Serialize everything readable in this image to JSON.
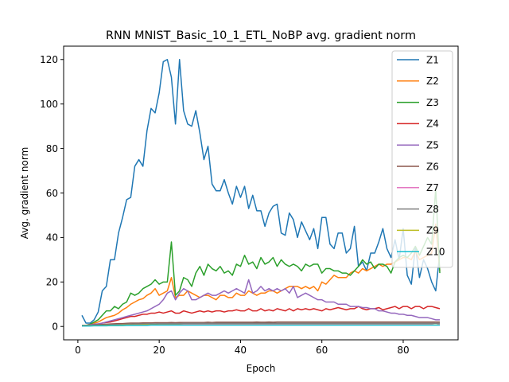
{
  "chart_data": {
    "type": "line",
    "title": "RNN MNIST_Basic_10_1_ETL_NoBP avg. gradient norm",
    "xlabel": "Epoch",
    "ylabel": "Avg. gradient norm",
    "xlim": [
      -3.5,
      93.5
    ],
    "ylim": [
      -6.0,
      126.0
    ],
    "xticks": [
      0,
      20,
      40,
      60,
      80
    ],
    "yticks": [
      0,
      20,
      40,
      60,
      80,
      100,
      120
    ],
    "grid": false,
    "legend_position": "top-right",
    "x": [
      1,
      2,
      3,
      4,
      5,
      6,
      7,
      8,
      9,
      10,
      11,
      12,
      13,
      14,
      15,
      16,
      17,
      18,
      19,
      20,
      21,
      22,
      23,
      24,
      25,
      26,
      27,
      28,
      29,
      30,
      31,
      32,
      33,
      34,
      35,
      36,
      37,
      38,
      39,
      40,
      41,
      42,
      43,
      44,
      45,
      46,
      47,
      48,
      49,
      50,
      51,
      52,
      53,
      54,
      55,
      56,
      57,
      58,
      59,
      60,
      61,
      62,
      63,
      64,
      65,
      66,
      67,
      68,
      69,
      70,
      71,
      72,
      73,
      74,
      75,
      76,
      77,
      78,
      79,
      80,
      81,
      82,
      83,
      84,
      85,
      86,
      87,
      88,
      89
    ],
    "series": [
      {
        "name": "Z1",
        "color": "#1f77b4",
        "values": [
          5,
          1.5,
          1.5,
          3,
          6.5,
          16,
          18,
          30,
          30,
          42,
          49,
          57,
          58,
          72,
          75,
          72,
          88,
          98,
          96,
          105,
          119,
          120,
          112,
          91,
          120,
          97,
          91,
          90,
          97,
          87,
          75,
          81,
          64,
          61,
          61,
          66,
          60,
          55,
          63,
          58,
          63,
          53,
          59,
          52,
          52,
          45,
          51,
          54,
          55,
          42,
          41,
          51,
          48,
          40,
          47,
          43,
          39,
          44,
          35,
          49,
          49,
          37,
          35,
          42,
          42,
          33,
          35,
          45,
          27,
          29,
          25,
          33,
          33,
          38,
          44,
          35,
          31,
          39,
          30,
          44,
          23,
          19,
          36,
          22,
          30,
          26,
          20,
          16,
          33
        ]
      },
      {
        "name": "Z2",
        "color": "#ff7f0e",
        "values": [
          0.5,
          0.5,
          1,
          1.5,
          2,
          3,
          4,
          4.5,
          5,
          6,
          7.5,
          8.5,
          10,
          11,
          12,
          12.5,
          14,
          15,
          17,
          14,
          15,
          16,
          22,
          13,
          14,
          14,
          16,
          15,
          14,
          13,
          14,
          14,
          13,
          12,
          14,
          14,
          13,
          13,
          15,
          14,
          14,
          16,
          15,
          14,
          15,
          15,
          16,
          16,
          15,
          16,
          17,
          18,
          18,
          18,
          17,
          18,
          17,
          18,
          16,
          20,
          19,
          21,
          23,
          22,
          22,
          22,
          24,
          25,
          24,
          26,
          25,
          26,
          27,
          28,
          27,
          28,
          28,
          29,
          30,
          31,
          31,
          30,
          34,
          30,
          31,
          32,
          33,
          46,
          25
        ]
      },
      {
        "name": "Z3",
        "color": "#2ca02c",
        "values": [
          0.3,
          0.5,
          1,
          2,
          3,
          5,
          7,
          7,
          9,
          8,
          10,
          11,
          15,
          14,
          15,
          17,
          18,
          19,
          21,
          19,
          20,
          20,
          38,
          14,
          16,
          22,
          21,
          18,
          24,
          27,
          23,
          28,
          26,
          25,
          27,
          24,
          25,
          23,
          28,
          27,
          32,
          28,
          29,
          26,
          31,
          28,
          29,
          31,
          27,
          30,
          28,
          27,
          28,
          27,
          25,
          28,
          27,
          28,
          28,
          24,
          26,
          26,
          25,
          25,
          24,
          24,
          23,
          25,
          27,
          30,
          28,
          29,
          26,
          28,
          28,
          27,
          24,
          29,
          31,
          32,
          31,
          33,
          36,
          32,
          36,
          40,
          37,
          62,
          24
        ]
      },
      {
        "name": "Z4",
        "color": "#d62728",
        "values": [
          0.3,
          0.3,
          0.5,
          0.8,
          1,
          1.5,
          1.8,
          2,
          2.5,
          3,
          3.5,
          4,
          4.5,
          4.5,
          5,
          5.5,
          5.5,
          6,
          6,
          6.5,
          6,
          6.5,
          7,
          6,
          6,
          7,
          6.5,
          6,
          6.5,
          7,
          6.5,
          7,
          6.5,
          7,
          7,
          6.5,
          7,
          7,
          7.5,
          7,
          7,
          8,
          7,
          7,
          8,
          7,
          7.5,
          7,
          8,
          7.5,
          7,
          8,
          7,
          8,
          7.5,
          8,
          7.5,
          8,
          7.5,
          7,
          8,
          7.5,
          8,
          8.5,
          8,
          7.5,
          8,
          8,
          9,
          8,
          7.5,
          8,
          8,
          8.5,
          7.5,
          8,
          8.5,
          9,
          8,
          9,
          9,
          8,
          9,
          9,
          8,
          9,
          9,
          8.5,
          8
        ]
      },
      {
        "name": "Z5",
        "color": "#9467bd",
        "values": [
          0.5,
          0.5,
          0.8,
          1,
          1.2,
          1.5,
          2,
          2.5,
          3,
          3.5,
          4,
          4.5,
          5,
          5.5,
          6,
          6.5,
          7,
          8,
          9,
          10,
          12,
          15,
          16,
          12,
          15,
          17,
          16,
          12,
          12,
          13,
          14,
          15,
          14,
          14,
          15,
          16,
          15,
          16,
          17,
          16,
          15,
          21,
          15,
          16,
          18,
          16,
          17,
          16,
          17,
          16,
          17,
          15,
          18,
          13,
          14,
          15,
          14,
          13,
          12,
          12,
          11,
          11,
          11,
          10,
          10,
          10,
          9,
          9,
          9,
          8.5,
          8.5,
          8,
          8,
          7,
          7,
          6.5,
          6,
          6,
          5.5,
          5.5,
          5,
          5,
          4.5,
          4,
          4,
          4,
          3.5,
          3,
          3
        ]
      },
      {
        "name": "Z6",
        "color": "#8c564b",
        "values": [
          0.5,
          0.5,
          0.6,
          0.7,
          0.8,
          0.9,
          1,
          1.1,
          1.2,
          1.3,
          1.3,
          1.4,
          1.5,
          1.5,
          1.5,
          1.6,
          1.6,
          1.6,
          1.7,
          1.7,
          1.7,
          1.7,
          1.8,
          1.7,
          1.8,
          1.8,
          1.8,
          1.8,
          1.8,
          1.8,
          1.8,
          1.9,
          1.8,
          1.9,
          1.9,
          1.9,
          1.9,
          1.9,
          1.9,
          1.9,
          1.9,
          1.9,
          1.9,
          2,
          1.9,
          1.9,
          2,
          1.9,
          2,
          2,
          2,
          2,
          2,
          2,
          2,
          2,
          2,
          2,
          2,
          2,
          2,
          2,
          2,
          2,
          2,
          2,
          2,
          2,
          2,
          2,
          2,
          2,
          2,
          2,
          2,
          2,
          2,
          2,
          2,
          2,
          2,
          2,
          2,
          2,
          2,
          2,
          2,
          2,
          2
        ]
      },
      {
        "name": "Z7",
        "color": "#e377c2",
        "values": [
          0.3,
          0.3,
          0.4,
          0.4,
          0.5,
          0.5,
          0.6,
          0.6,
          0.7,
          0.7,
          0.8,
          0.8,
          0.9,
          0.9,
          0.9,
          1,
          1,
          1,
          1,
          1,
          1,
          1,
          1.1,
          1,
          1.1,
          1.1,
          1.1,
          1.1,
          1.1,
          1.1,
          1.1,
          1.1,
          1.1,
          1.1,
          1.1,
          1.1,
          1.1,
          1.1,
          1.1,
          1.1,
          1.1,
          1.1,
          1.1,
          1.1,
          1.1,
          1.1,
          1.1,
          1.1,
          1.1,
          1.1,
          1.1,
          1.1,
          1.1,
          1.1,
          1.1,
          1.1,
          1.1,
          1.1,
          1.1,
          1.1,
          1.1,
          1.1,
          1.1,
          1.1,
          1.1,
          1.1,
          1.1,
          1.1,
          1.1,
          1.1,
          1.1,
          1.1,
          1.1,
          1.1,
          1.1,
          1.1,
          1.1,
          1.1,
          1.1,
          1.1,
          1.1,
          1.1,
          1.1,
          1.1,
          1.1,
          1.1,
          1.2,
          1.5,
          1
        ]
      },
      {
        "name": "Z8",
        "color": "#7f7f7f",
        "values": [
          0.4,
          0.4,
          0.5,
          0.5,
          0.6,
          0.6,
          0.7,
          0.8,
          0.8,
          0.9,
          0.9,
          1,
          1,
          1.1,
          1.1,
          1.1,
          1.2,
          1.2,
          1.2,
          1.3,
          1.3,
          1.3,
          1.3,
          1.3,
          1.3,
          1.4,
          1.4,
          1.4,
          1.4,
          1.4,
          1.4,
          1.4,
          1.4,
          1.4,
          1.4,
          1.4,
          1.4,
          1.4,
          1.4,
          1.4,
          1.4,
          1.4,
          1.4,
          1.4,
          1.4,
          1.4,
          1.4,
          1.4,
          1.4,
          1.4,
          1.4,
          1.4,
          1.4,
          1.4,
          1.4,
          1.4,
          1.4,
          1.4,
          1.4,
          1.4,
          1.4,
          1.4,
          1.4,
          1.4,
          1.4,
          1.4,
          1.4,
          1.4,
          1.4,
          1.4,
          1.4,
          1.4,
          1.4,
          1.4,
          1.4,
          1.4,
          1.4,
          1.4,
          1.4,
          1.4,
          1.4,
          1.4,
          1.4,
          1.4,
          1.4,
          1.4,
          1.4,
          1.4,
          1.4
        ]
      },
      {
        "name": "Z9",
        "color": "#bcbd22",
        "values": [
          0.3,
          0.3,
          0.3,
          0.4,
          0.4,
          0.4,
          0.5,
          0.5,
          0.5,
          0.5,
          0.6,
          0.6,
          0.6,
          0.6,
          0.6,
          0.7,
          0.7,
          0.7,
          0.7,
          0.7,
          0.7,
          0.7,
          0.7,
          0.7,
          0.7,
          0.7,
          0.7,
          0.7,
          0.7,
          0.7,
          0.7,
          0.7,
          0.7,
          0.7,
          0.7,
          0.7,
          0.7,
          0.7,
          0.7,
          0.7,
          0.7,
          0.7,
          0.7,
          0.7,
          0.7,
          0.7,
          0.7,
          0.7,
          0.7,
          0.7,
          0.7,
          0.7,
          0.7,
          0.7,
          0.7,
          0.7,
          0.7,
          0.7,
          0.7,
          0.7,
          0.7,
          0.7,
          0.7,
          0.7,
          0.7,
          0.7,
          0.7,
          0.7,
          0.7,
          0.7,
          0.7,
          0.7,
          0.7,
          0.7,
          0.7,
          0.7,
          0.7,
          0.7,
          0.7,
          0.7,
          0.7,
          0.7,
          0.7,
          0.7,
          0.7,
          0.7,
          0.7,
          0.7,
          0.7
        ]
      },
      {
        "name": "Z10",
        "color": "#17becf",
        "values": [
          0.2,
          0.2,
          0.2,
          0.3,
          0.3,
          0.3,
          0.3,
          0.4,
          0.4,
          0.4,
          0.4,
          0.5,
          0.5,
          0.5,
          0.5,
          0.5,
          0.5,
          0.6,
          0.6,
          0.6,
          0.6,
          0.6,
          0.6,
          0.6,
          0.6,
          0.6,
          0.6,
          0.6,
          0.6,
          0.6,
          0.6,
          0.6,
          0.6,
          0.6,
          0.6,
          0.6,
          0.6,
          0.6,
          0.6,
          0.6,
          0.6,
          0.6,
          0.6,
          0.6,
          0.6,
          0.6,
          0.6,
          0.6,
          0.6,
          0.6,
          0.6,
          0.6,
          0.6,
          0.6,
          0.6,
          0.6,
          0.6,
          0.6,
          0.6,
          0.6,
          0.6,
          0.6,
          0.6,
          0.6,
          0.6,
          0.6,
          0.6,
          0.6,
          0.6,
          0.6,
          0.6,
          0.6,
          0.6,
          0.6,
          0.6,
          0.6,
          0.6,
          0.6,
          0.6,
          0.6,
          0.6,
          0.6,
          0.6,
          0.6,
          0.6,
          0.6,
          0.6,
          0.6,
          0.6
        ]
      }
    ]
  }
}
